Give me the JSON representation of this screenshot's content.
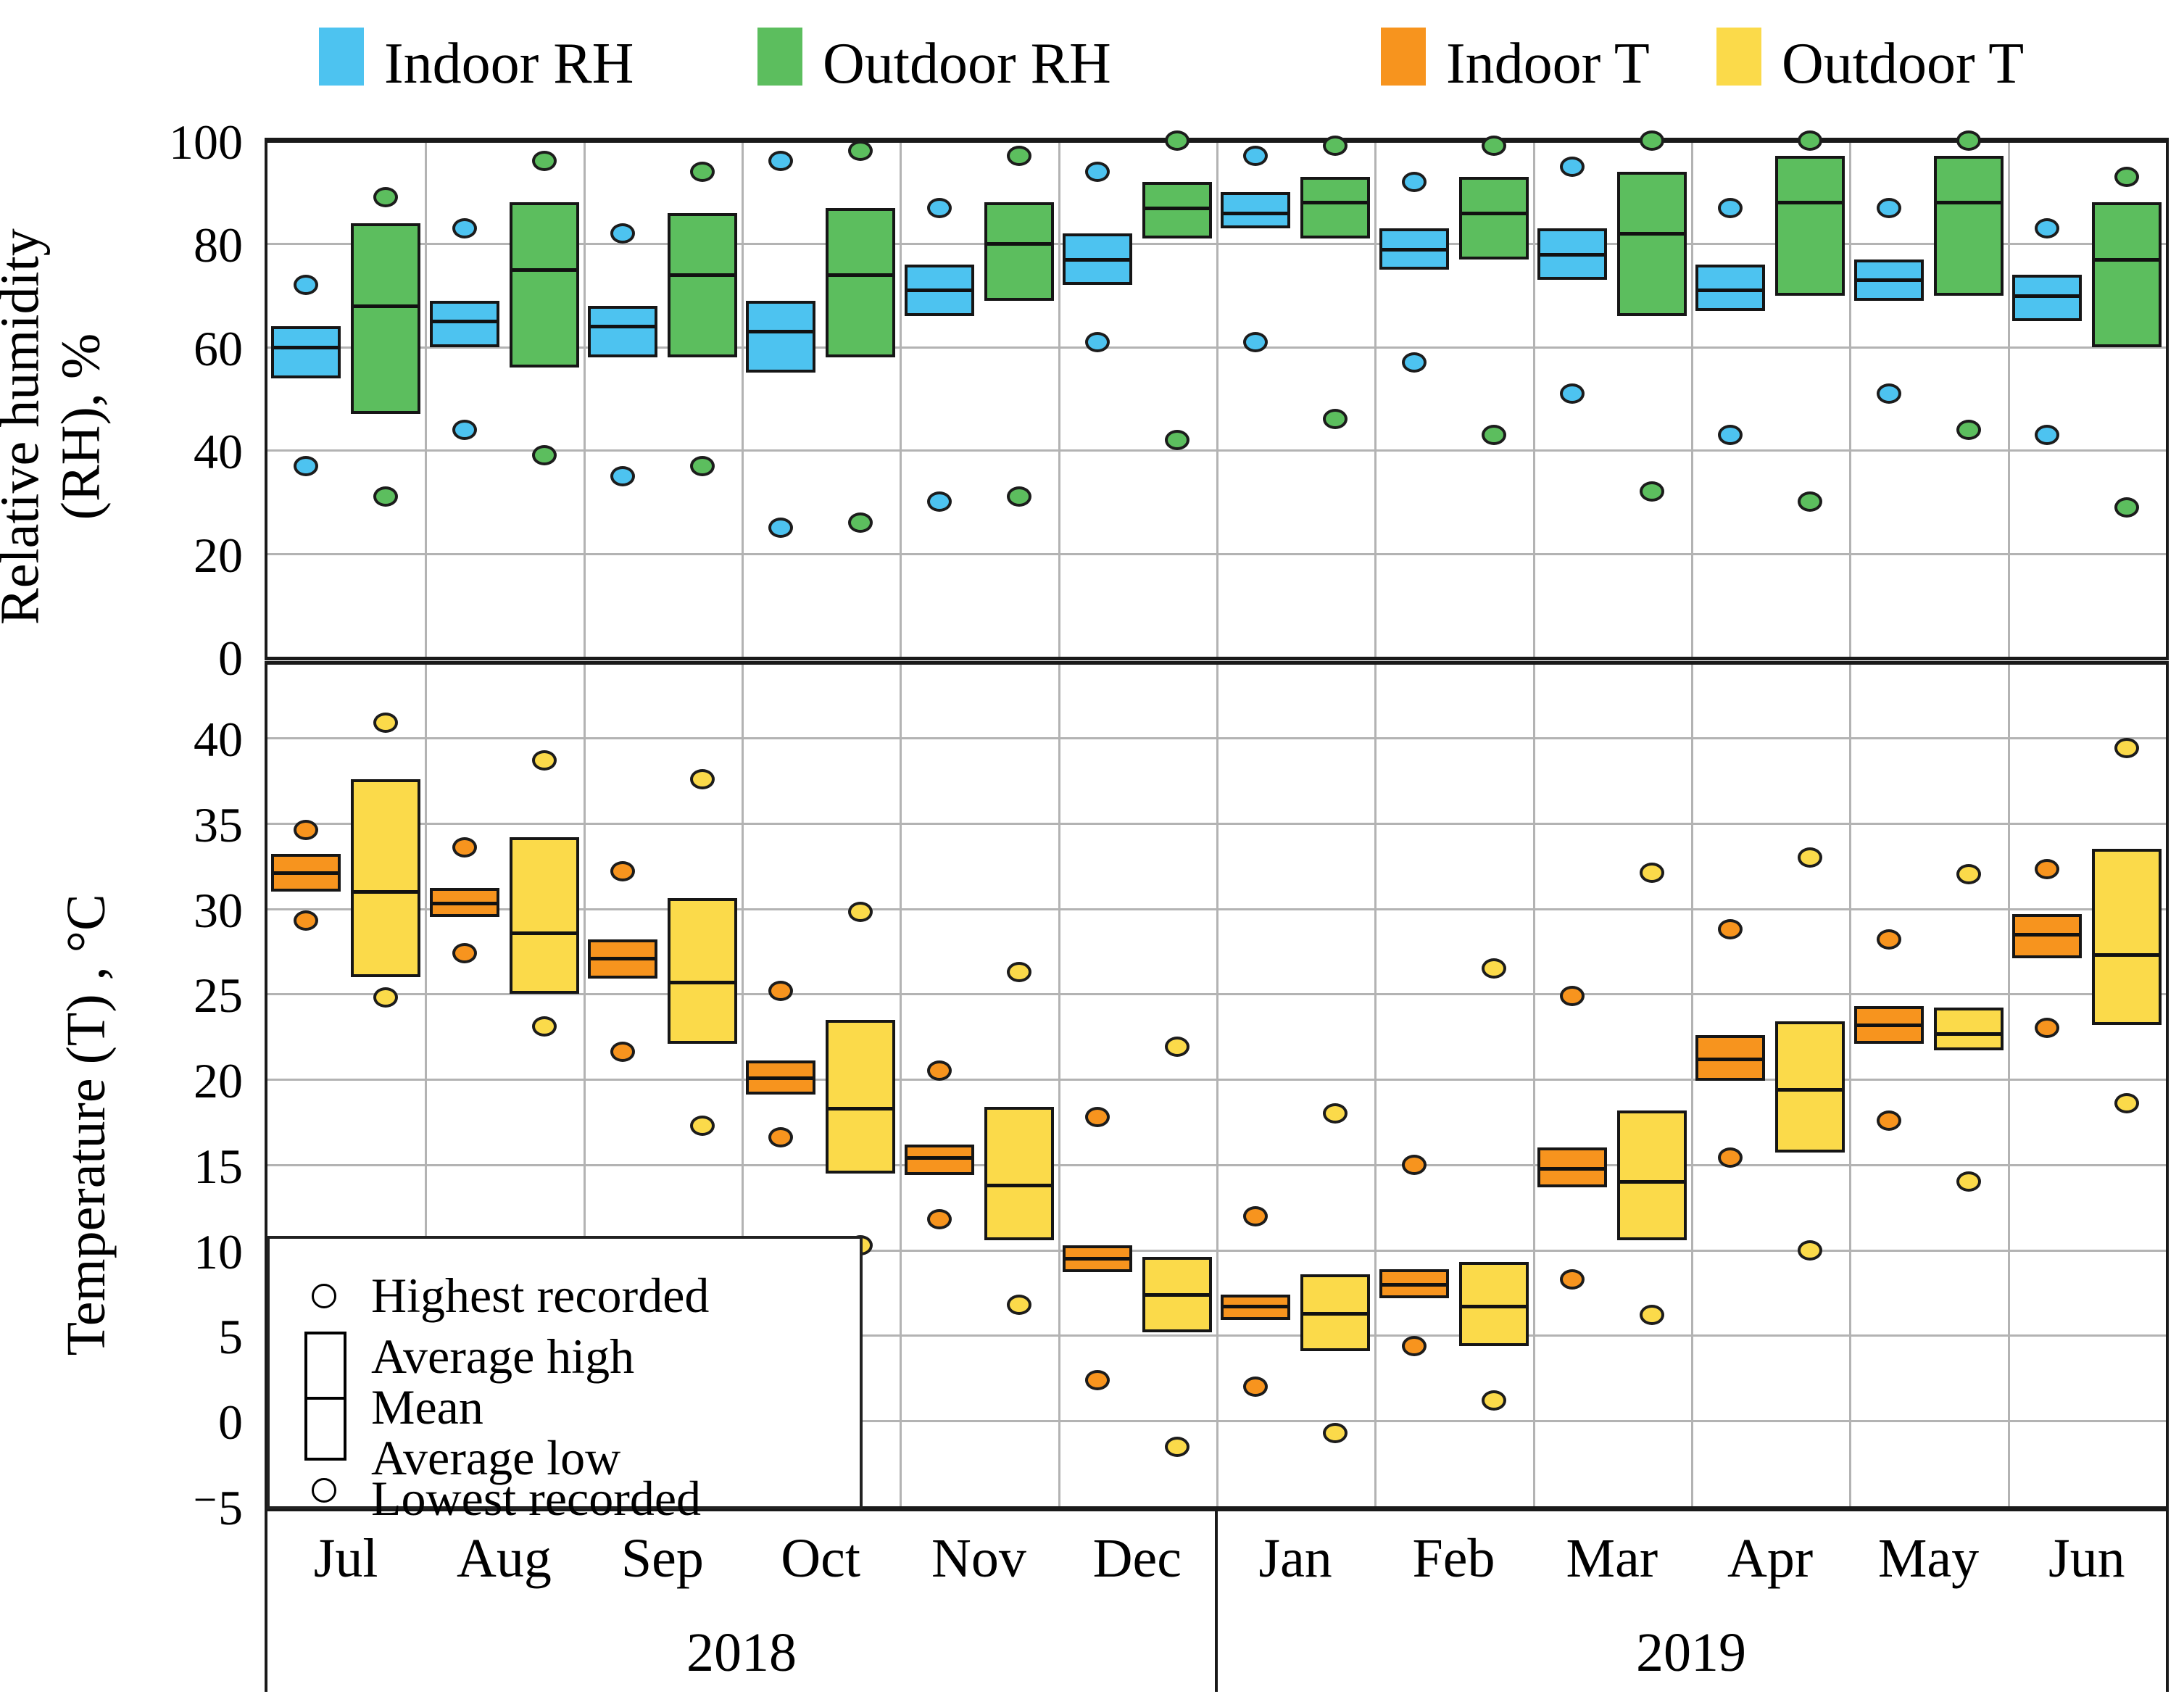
{
  "legend": {
    "items": [
      {
        "label": "Indoor RH",
        "color_key": "indoor_rh"
      },
      {
        "label": "Outdoor RH",
        "color_key": "outdoor_rh"
      },
      {
        "label": "Indoor T",
        "color_key": "indoor_t"
      },
      {
        "label": "Outdoor T",
        "color_key": "outdoor_t"
      }
    ]
  },
  "colors": {
    "indoor_rh": "#4dc3f0",
    "outdoor_rh": "#5cbe5e",
    "indoor_t": "#f7941e",
    "outdoor_t": "#fbda4a",
    "grid": "#b3b3b3",
    "frame": "#1a1a1a"
  },
  "marker_legend": {
    "highest": "Highest recorded",
    "avg_high": "Average high",
    "mean": "Mean",
    "avg_low": "Average low",
    "lowest": "Lowest recorded"
  },
  "x_axis": {
    "months": [
      "Jul",
      "Aug",
      "Sep",
      "Oct",
      "Nov",
      "Dec",
      "Jan",
      "Feb",
      "Mar",
      "Apr",
      "May",
      "Jun"
    ],
    "years": [
      {
        "label": "2018",
        "span_months": 6
      },
      {
        "label": "2019",
        "span_months": 6
      }
    ]
  },
  "chart_data": [
    {
      "type": "box-dot",
      "panel": "relative_humidity",
      "ylabel_line1": "Relative humidity",
      "ylabel_line2": "(RH), %",
      "ylim": [
        0,
        100
      ],
      "ticks": [
        100,
        80,
        60,
        40,
        20,
        0
      ],
      "categories": [
        "Jul",
        "Aug",
        "Sep",
        "Oct",
        "Nov",
        "Dec",
        "Jan",
        "Feb",
        "Mar",
        "Apr",
        "May",
        "Jun"
      ],
      "series": [
        {
          "name": "Indoor RH",
          "color_key": "indoor_rh",
          "avg_high": [
            64,
            69,
            68,
            69,
            76,
            82,
            90,
            83,
            83,
            76,
            77,
            74
          ],
          "mean": [
            60,
            65,
            64,
            63,
            71,
            77,
            86,
            79,
            78,
            71,
            73,
            70
          ],
          "avg_low": [
            54,
            60,
            58,
            55,
            66,
            72,
            83,
            75,
            73,
            67,
            69,
            65
          ],
          "highest": [
            72,
            83,
            82,
            96,
            87,
            94,
            97,
            92,
            95,
            87,
            87,
            83
          ],
          "lowest": [
            37,
            44,
            35,
            25,
            30,
            61,
            61,
            57,
            51,
            43,
            51,
            43
          ]
        },
        {
          "name": "Outdoor RH",
          "color_key": "outdoor_rh",
          "avg_high": [
            84,
            88,
            86,
            87,
            88,
            92,
            93,
            93,
            94,
            97,
            97,
            88
          ],
          "mean": [
            68,
            75,
            74,
            74,
            80,
            87,
            88,
            86,
            82,
            88,
            88,
            77
          ],
          "avg_low": [
            47,
            56,
            58,
            58,
            69,
            81,
            81,
            77,
            66,
            70,
            70,
            60
          ],
          "highest": [
            89,
            96,
            94,
            98,
            97,
            100,
            99,
            99,
            100,
            100,
            100,
            93
          ],
          "lowest": [
            31,
            39,
            37,
            26,
            31,
            42,
            46,
            43,
            32,
            30,
            44,
            29
          ]
        }
      ]
    },
    {
      "type": "box-dot",
      "panel": "temperature",
      "ylabel": "Temperature (T) , °C",
      "ylim": [
        -5,
        45
      ],
      "ticks": [
        40,
        35,
        30,
        25,
        20,
        15,
        10,
        5,
        0,
        -5
      ],
      "categories": [
        "Jul",
        "Aug",
        "Sep",
        "Oct",
        "Nov",
        "Dec",
        "Jan",
        "Feb",
        "Mar",
        "Apr",
        "May",
        "Jun"
      ],
      "series": [
        {
          "name": "Indoor T",
          "color_key": "indoor_t",
          "avg_high": [
            33.2,
            31.2,
            28.2,
            21.1,
            16.2,
            10.3,
            7.4,
            8.9,
            16.0,
            22.6,
            24.3,
            29.7
          ],
          "mean": [
            32.1,
            30.3,
            27.1,
            20.1,
            15.4,
            9.5,
            6.7,
            8.0,
            14.8,
            21.2,
            23.2,
            28.5
          ],
          "avg_low": [
            31.0,
            29.5,
            25.9,
            19.1,
            14.4,
            8.7,
            5.9,
            7.2,
            13.7,
            19.9,
            22.1,
            27.1
          ],
          "highest": [
            34.6,
            33.6,
            32.2,
            25.2,
            20.5,
            17.8,
            12.0,
            15.0,
            24.9,
            28.8,
            28.2,
            32.3
          ],
          "lowest": [
            29.3,
            27.4,
            21.6,
            16.6,
            11.8,
            2.4,
            2.0,
            4.4,
            8.3,
            15.4,
            17.6,
            23.0
          ]
        },
        {
          "name": "Outdoor T",
          "color_key": "outdoor_t",
          "avg_high": [
            37.6,
            34.2,
            30.6,
            23.5,
            18.4,
            9.6,
            8.6,
            9.3,
            18.2,
            23.4,
            24.2,
            33.5
          ],
          "mean": [
            31.0,
            28.6,
            25.7,
            18.3,
            13.8,
            7.4,
            6.3,
            6.7,
            14.0,
            19.4,
            22.7,
            27.3
          ],
          "avg_low": [
            26.0,
            25.0,
            22.1,
            14.5,
            10.6,
            5.2,
            4.1,
            4.4,
            10.6,
            15.7,
            21.7,
            23.2
          ],
          "highest": [
            40.9,
            38.7,
            37.6,
            29.8,
            26.3,
            21.9,
            18.0,
            26.5,
            32.1,
            33.0,
            32.0,
            39.4
          ],
          "lowest": [
            24.8,
            23.1,
            17.3,
            10.3,
            6.8,
            -1.5,
            -0.7,
            1.2,
            6.2,
            10.0,
            14.0,
            18.6
          ]
        }
      ]
    }
  ]
}
